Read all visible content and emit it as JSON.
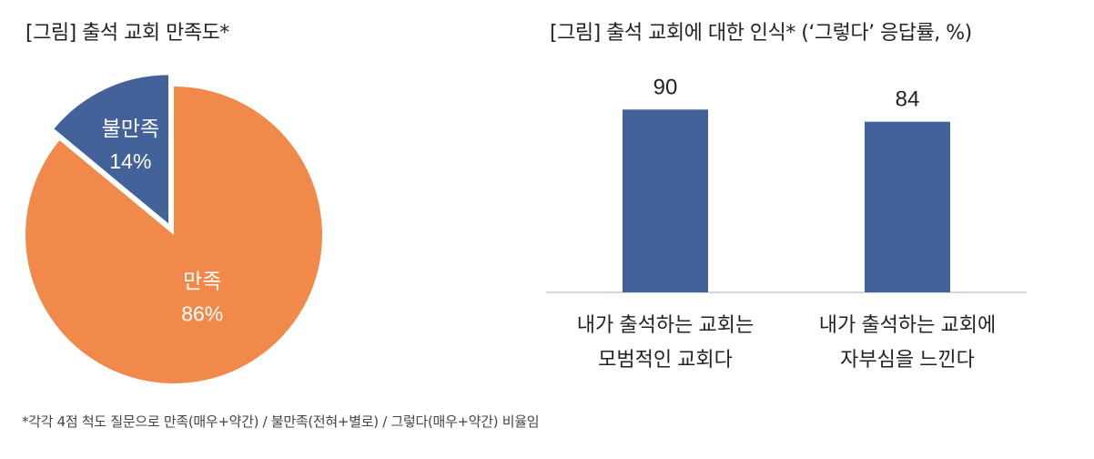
{
  "chart_data": [
    {
      "type": "pie",
      "title": "[그림] 출석 교회 만족도*",
      "slices": [
        {
          "label": "만족",
          "value": 86,
          "display": "86%",
          "color": "#F0894A",
          "exploded": false
        },
        {
          "label": "불만족",
          "value": 14,
          "display": "14%",
          "color": "#43629A",
          "exploded": true
        }
      ],
      "legend": "none"
    },
    {
      "type": "bar",
      "title": "[그림] 출석 교회에 대한 인식* (‘그렇다’ 응답률, %)",
      "categories": [
        [
          "내가 출석하는 교회는",
          "모범적인 교회다"
        ],
        [
          "내가 출석하는 교회에",
          "자부심을 느낀다"
        ]
      ],
      "values": [
        90,
        84
      ],
      "data_labels": [
        "90",
        "84"
      ],
      "color": "#43629A",
      "ylim": [
        0,
        100
      ],
      "grid": false,
      "legend": "none"
    }
  ],
  "footnote": "*각각 4점 척도 질문으로 만족(매우+약간) / 불만족(전혀+별로) / 그렇다(매우+약간) 비율임"
}
